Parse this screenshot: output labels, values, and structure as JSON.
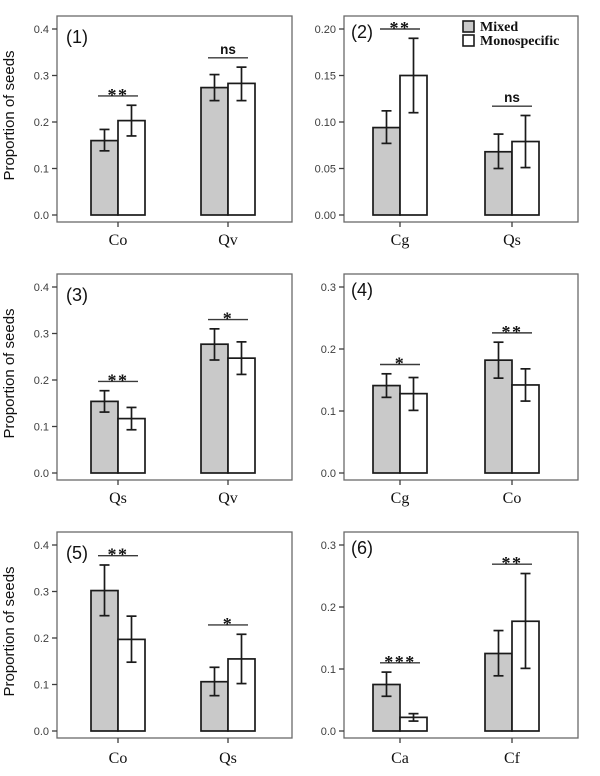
{
  "figure": {
    "ylabel": "Proportion of seeds",
    "colors": {
      "mixed_fill": "#c9c9c9",
      "mono_fill": "#ffffff",
      "bar_stroke": "#1a1a1a",
      "panel_border": "#6a6a6a",
      "tick": "#3d3d3d",
      "tick_text": "#3d3d3d",
      "sig": "#3a3a3a",
      "text": "#111111"
    },
    "legend": {
      "items": [
        {
          "label": "Mixed",
          "fill": "#c9c9c9"
        },
        {
          "label": "Monospecific",
          "fill": "#ffffff"
        }
      ]
    }
  },
  "chart_data": [
    {
      "type": "bar",
      "panel_label": "(1)",
      "categories": [
        "Co",
        "Qv"
      ],
      "series": [
        {
          "name": "Mixed",
          "values": [
            0.16,
            0.274
          ],
          "err_low": [
            0.138,
            0.246
          ],
          "err_high": [
            0.184,
            0.302
          ]
        },
        {
          "name": "Monospecific",
          "values": [
            0.203,
            0.283
          ],
          "err_low": [
            0.17,
            0.246
          ],
          "err_high": [
            0.236,
            0.318
          ]
        }
      ],
      "significance": [
        "**",
        "ns"
      ],
      "ylim": [
        0,
        0.4
      ],
      "yticks": [
        "0.0",
        "0.1",
        "0.2",
        "0.3",
        "0.4"
      ],
      "ylabel": "Proportion of seeds",
      "show_ylabel": true,
      "show_legend": false
    },
    {
      "type": "bar",
      "panel_label": "(2)",
      "categories": [
        "Cg",
        "Qs"
      ],
      "series": [
        {
          "name": "Mixed",
          "values": [
            0.094,
            0.068
          ],
          "err_low": [
            0.077,
            0.05
          ],
          "err_high": [
            0.112,
            0.087
          ]
        },
        {
          "name": "Monospecific",
          "values": [
            0.15,
            0.079
          ],
          "err_low": [
            0.11,
            0.051
          ],
          "err_high": [
            0.19,
            0.107
          ]
        }
      ],
      "significance": [
        "**",
        "ns"
      ],
      "ylim": [
        0,
        0.2
      ],
      "yticks": [
        "0.00",
        "0.05",
        "0.10",
        "0.15",
        "0.20"
      ],
      "ylabel": "",
      "show_ylabel": false,
      "show_legend": true
    },
    {
      "type": "bar",
      "panel_label": "(3)",
      "categories": [
        "Qs",
        "Qv"
      ],
      "series": [
        {
          "name": "Mixed",
          "values": [
            0.154,
            0.277
          ],
          "err_low": [
            0.131,
            0.243
          ],
          "err_high": [
            0.177,
            0.31
          ]
        },
        {
          "name": "Monospecific",
          "values": [
            0.117,
            0.247
          ],
          "err_low": [
            0.093,
            0.212
          ],
          "err_high": [
            0.141,
            0.282
          ]
        }
      ],
      "significance": [
        "**",
        "*"
      ],
      "ylim": [
        0,
        0.4
      ],
      "yticks": [
        "0.0",
        "0.1",
        "0.2",
        "0.3",
        "0.4"
      ],
      "ylabel": "Proportion of seeds",
      "show_ylabel": true,
      "show_legend": false
    },
    {
      "type": "bar",
      "panel_label": "(4)",
      "categories": [
        "Cg",
        "Co"
      ],
      "series": [
        {
          "name": "Mixed",
          "values": [
            0.141,
            0.182
          ],
          "err_low": [
            0.122,
            0.153
          ],
          "err_high": [
            0.16,
            0.211
          ]
        },
        {
          "name": "Monospecific",
          "values": [
            0.128,
            0.142
          ],
          "err_low": [
            0.101,
            0.116
          ],
          "err_high": [
            0.154,
            0.168
          ]
        }
      ],
      "significance": [
        "*",
        "**"
      ],
      "ylim": [
        0,
        0.3
      ],
      "yticks": [
        "0.0",
        "0.1",
        "0.2",
        "0.3"
      ],
      "ylabel": "",
      "show_ylabel": false,
      "show_legend": false
    },
    {
      "type": "bar",
      "panel_label": "(5)",
      "categories": [
        "Co",
        "Qs"
      ],
      "series": [
        {
          "name": "Mixed",
          "values": [
            0.302,
            0.106
          ],
          "err_low": [
            0.248,
            0.076
          ],
          "err_high": [
            0.357,
            0.137
          ]
        },
        {
          "name": "Monospecific",
          "values": [
            0.197,
            0.155
          ],
          "err_low": [
            0.148,
            0.102
          ],
          "err_high": [
            0.247,
            0.208
          ]
        }
      ],
      "significance": [
        "**",
        "*"
      ],
      "ylim": [
        0,
        0.4
      ],
      "yticks": [
        "0.0",
        "0.1",
        "0.2",
        "0.3",
        "0.4"
      ],
      "ylabel": "Proportion of seeds",
      "show_ylabel": true,
      "show_legend": false
    },
    {
      "type": "bar",
      "panel_label": "(6)",
      "categories": [
        "Ca",
        "Cf"
      ],
      "series": [
        {
          "name": "Mixed",
          "values": [
            0.075,
            0.125
          ],
          "err_low": [
            0.056,
            0.089
          ],
          "err_high": [
            0.095,
            0.162
          ]
        },
        {
          "name": "Monospecific",
          "values": [
            0.022,
            0.177
          ],
          "err_low": [
            0.016,
            0.101
          ],
          "err_high": [
            0.028,
            0.254
          ]
        }
      ],
      "significance": [
        "***",
        "**"
      ],
      "ylim": [
        0,
        0.3
      ],
      "yticks": [
        "0.0",
        "0.1",
        "0.2",
        "0.3"
      ],
      "ylabel": "",
      "show_ylabel": false,
      "show_legend": false
    }
  ]
}
